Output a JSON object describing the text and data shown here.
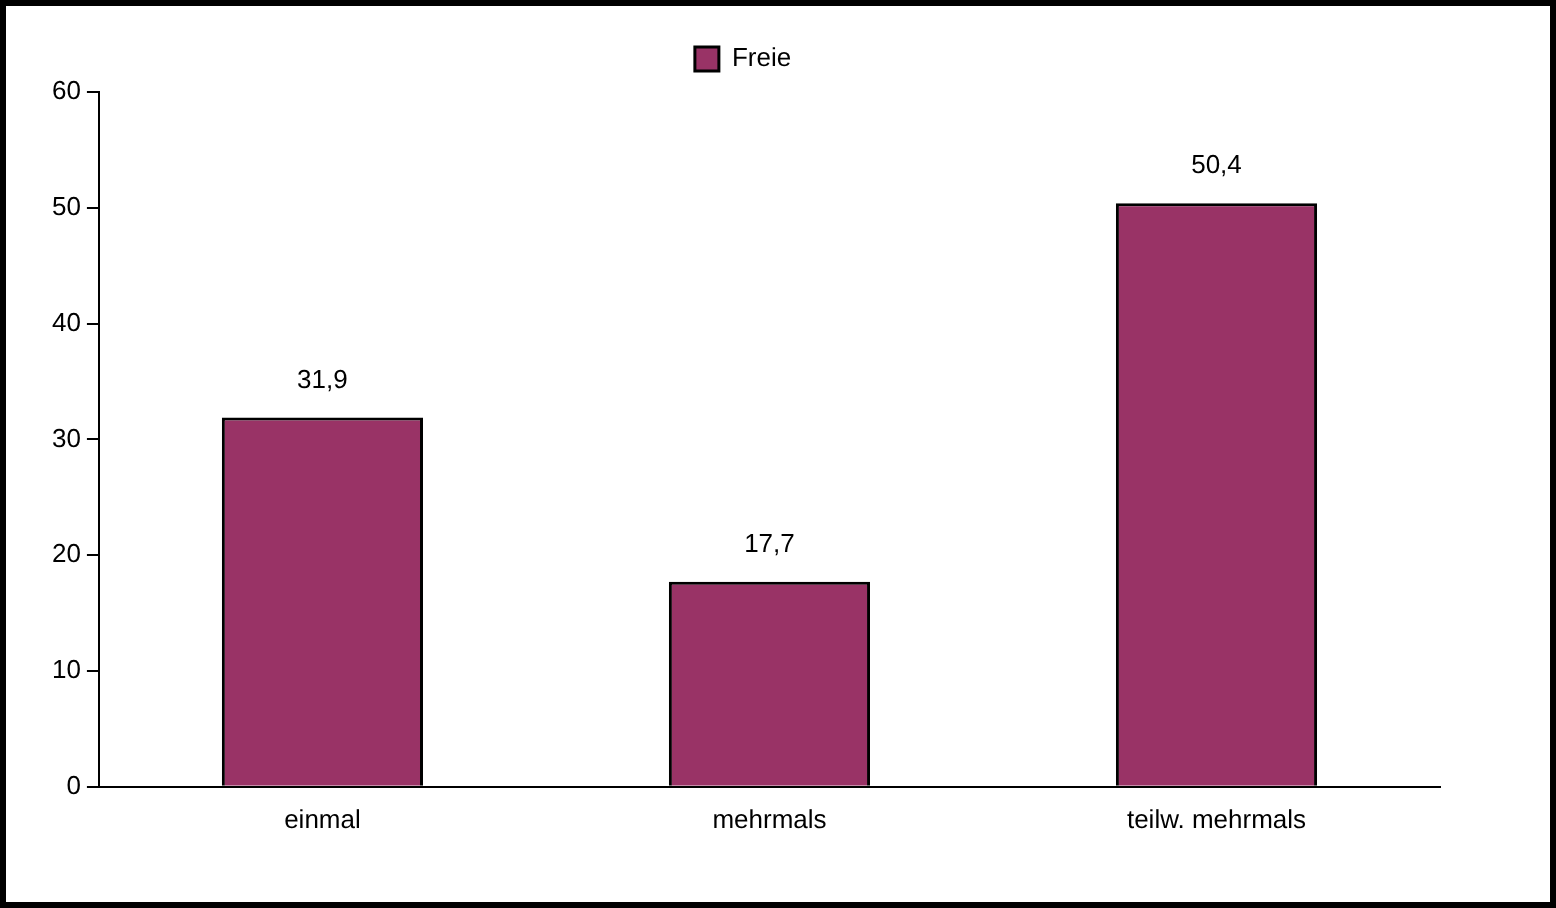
{
  "chart_data": {
    "type": "bar",
    "categories": [
      "einmal",
      "mehrmals",
      "teilw. mehrmals"
    ],
    "series": [
      {
        "name": "Freie",
        "color": "#993366",
        "values": [
          31.9,
          17.7,
          50.4
        ],
        "value_labels": [
          "31,9",
          "17,7",
          "50,4"
        ]
      }
    ],
    "ylim": [
      0,
      60
    ],
    "yticks": [
      0,
      10,
      20,
      30,
      40,
      50,
      60
    ],
    "grid": false,
    "legend": "top"
  }
}
